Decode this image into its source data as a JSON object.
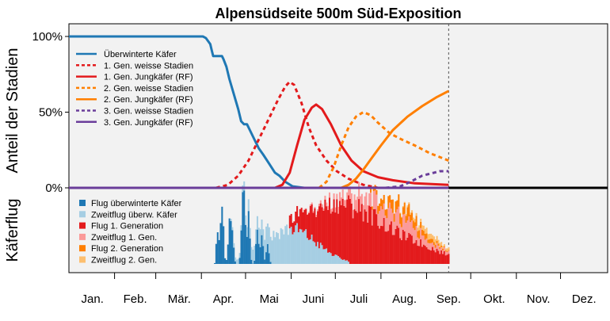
{
  "chart_data": {
    "type": "line",
    "title": "Alpensüdseite 500m Süd-Exposition",
    "upper_panel": {
      "ylabel": "Anteil der Stadien",
      "yticks": [
        "100%",
        "50%",
        "0%"
      ],
      "ylim": [
        0,
        1.1
      ],
      "reference_line_day": 258,
      "legend": [
        {
          "label": "Überwinterte Käfer",
          "color": "#1f78b4",
          "dash": "solid"
        },
        {
          "label": "1. Gen. weisse Stadien",
          "color": "#e31a1c",
          "dash": "dotted"
        },
        {
          "label": "1. Gen. Jungkäfer (RF)",
          "color": "#e31a1c",
          "dash": "solid"
        },
        {
          "label": "2. Gen. weisse Stadien",
          "color": "#ff7f00",
          "dash": "dotted"
        },
        {
          "label": "2. Gen. Jungkäfer (RF)",
          "color": "#ff7f00",
          "dash": "solid"
        },
        {
          "label": "3. Gen. weisse Stadien",
          "color": "#6a3d9a",
          "dash": "dotted"
        },
        {
          "label": "3. Gen. Jungkäfer (RF)",
          "color": "#6a3d9a",
          "dash": "solid"
        }
      ],
      "series": [
        {
          "name": "Überwinterte Käfer",
          "color": "#1f78b4",
          "dash": "solid",
          "points": [
            [
              0,
              1.0
            ],
            [
              32,
              1.0
            ],
            [
              60,
              1.0
            ],
            [
              91,
              1.0
            ],
            [
              93,
              0.99
            ],
            [
              96,
              0.95
            ],
            [
              97,
              0.91
            ],
            [
              98,
              0.87
            ],
            [
              104,
              0.87
            ],
            [
              105,
              0.85
            ],
            [
              107,
              0.8
            ],
            [
              109,
              0.72
            ],
            [
              112,
              0.62
            ],
            [
              115,
              0.52
            ],
            [
              117,
              0.44
            ],
            [
              119,
              0.42
            ],
            [
              121,
              0.42
            ],
            [
              123,
              0.38
            ],
            [
              126,
              0.32
            ],
            [
              129,
              0.26
            ],
            [
              132,
              0.22
            ],
            [
              136,
              0.16
            ],
            [
              140,
              0.1
            ],
            [
              143,
              0.08
            ],
            [
              147,
              0.04
            ],
            [
              152,
              0.01
            ],
            [
              160,
              0.0
            ],
            [
              258,
              0.0
            ]
          ]
        },
        {
          "name": "1. Gen. weisse Stadien",
          "color": "#e31a1c",
          "dash": "dotted",
          "points": [
            [
              100,
              0.0
            ],
            [
              108,
              0.02
            ],
            [
              115,
              0.08
            ],
            [
              122,
              0.18
            ],
            [
              128,
              0.3
            ],
            [
              135,
              0.44
            ],
            [
              142,
              0.58
            ],
            [
              147,
              0.67
            ],
            [
              150,
              0.7
            ],
            [
              153,
              0.68
            ],
            [
              158,
              0.56
            ],
            [
              163,
              0.4
            ],
            [
              168,
              0.28
            ],
            [
              175,
              0.18
            ],
            [
              182,
              0.11
            ],
            [
              190,
              0.06
            ],
            [
              200,
              0.02
            ],
            [
              210,
              0.0
            ],
            [
              258,
              0.0
            ]
          ]
        },
        {
          "name": "1. Gen. Jungkäfer (RF)",
          "color": "#e31a1c",
          "dash": "solid",
          "points": [
            [
              0,
              0.0
            ],
            [
              140,
              0.0
            ],
            [
              145,
              0.02
            ],
            [
              150,
              0.1
            ],
            [
              155,
              0.28
            ],
            [
              160,
              0.45
            ],
            [
              165,
              0.53
            ],
            [
              168,
              0.55
            ],
            [
              172,
              0.52
            ],
            [
              178,
              0.42
            ],
            [
              185,
              0.28
            ],
            [
              192,
              0.18
            ],
            [
              200,
              0.11
            ],
            [
              210,
              0.07
            ],
            [
              220,
              0.05
            ],
            [
              235,
              0.03
            ],
            [
              258,
              0.02
            ]
          ]
        },
        {
          "name": "2. Gen. weisse Stadien",
          "color": "#ff7f00",
          "dash": "dotted",
          "points": [
            [
              170,
              0.0
            ],
            [
              175,
              0.04
            ],
            [
              180,
              0.14
            ],
            [
              185,
              0.28
            ],
            [
              190,
              0.4
            ],
            [
              195,
              0.47
            ],
            [
              200,
              0.5
            ],
            [
              205,
              0.48
            ],
            [
              210,
              0.43
            ],
            [
              218,
              0.36
            ],
            [
              226,
              0.32
            ],
            [
              235,
              0.28
            ],
            [
              245,
              0.23
            ],
            [
              258,
              0.18
            ]
          ]
        },
        {
          "name": "2. Gen. Jungkäfer (RF)",
          "color": "#ff7f00",
          "dash": "solid",
          "points": [
            [
              0,
              0.0
            ],
            [
              185,
              0.0
            ],
            [
              190,
              0.02
            ],
            [
              195,
              0.06
            ],
            [
              200,
              0.12
            ],
            [
              206,
              0.2
            ],
            [
              212,
              0.28
            ],
            [
              220,
              0.38
            ],
            [
              230,
              0.47
            ],
            [
              240,
              0.54
            ],
            [
              250,
              0.6
            ],
            [
              258,
              0.64
            ]
          ]
        },
        {
          "name": "3. Gen. weisse Stadien",
          "color": "#6a3d9a",
          "dash": "dotted",
          "points": [
            [
              215,
              0.0
            ],
            [
              225,
              0.01
            ],
            [
              232,
              0.04
            ],
            [
              240,
              0.08
            ],
            [
              248,
              0.1
            ],
            [
              252,
              0.11
            ],
            [
              258,
              0.11
            ]
          ]
        },
        {
          "name": "3. Gen. Jungkäfer (RF)",
          "color": "#6a3d9a",
          "dash": "solid",
          "points": [
            [
              0,
              0.0
            ],
            [
              258,
              0.0
            ]
          ]
        }
      ]
    },
    "lower_panel": {
      "ylabel": "Käferflug",
      "type": "stacked-bar",
      "legend": [
        {
          "label": "Flug überwinterte Käfer",
          "color": "#1f78b4"
        },
        {
          "label": "Zweitflug überw. Käfer",
          "color": "#a6cee3"
        },
        {
          "label": "Flug 1. Generation",
          "color": "#e31a1c"
        },
        {
          "label": "Zweitflug 1. Gen.",
          "color": "#fb9a99"
        },
        {
          "label": "Flug 2. Generation",
          "color": "#ff7f00"
        },
        {
          "label": "Zweitflug 2. Gen.",
          "color": "#fdbf6f"
        }
      ]
    },
    "xticks": [
      {
        "label": "Jan.",
        "day": 16
      },
      {
        "label": "Feb.",
        "day": 45
      },
      {
        "label": "Mär.",
        "day": 75
      },
      {
        "label": "Apr.",
        "day": 105
      },
      {
        "label": "Mai",
        "day": 136
      },
      {
        "label": "Juni",
        "day": 166
      },
      {
        "label": "Juli",
        "day": 197
      },
      {
        "label": "Aug.",
        "day": 228
      },
      {
        "label": "Sep.",
        "day": 258
      },
      {
        "label": "Okt.",
        "day": 289
      },
      {
        "label": "Nov.",
        "day": 319
      },
      {
        "label": "Dez.",
        "day": 350
      }
    ],
    "xlim": [
      0,
      366
    ]
  }
}
